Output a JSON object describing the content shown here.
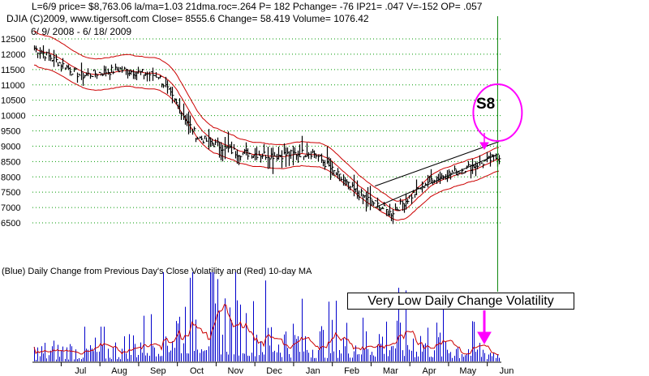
{
  "header": {
    "line1": "L=6/9  price= $8,763.06  la/ma=1.03 21dma.roc=.264 P=  182 Pchange= -76 IP21= .047 V=-152 OP= .057",
    "line2": "DJIA     (C)2009, www.tigersoft.com     Close=  8555.6  Change= 58.419 Volume= 1076.42",
    "line3": "6/ 9/ 2008 - 6/ 18/ 2009"
  },
  "annotations": {
    "signal": "S8",
    "volatility_note": "Very Low Daily Change Volatility"
  },
  "colors": {
    "bars": "#000000",
    "bands": "#cc0000",
    "grid": "#009900",
    "signal_line": "#008000",
    "circle": "#ff00ff",
    "arrow": "#ff00ff",
    "volatility_bars": "#0000cc",
    "volatility_ma": "#cc0000",
    "trendline": "#000000"
  },
  "chart_data": [
    {
      "type": "line",
      "subtype": "daily price bars with moving-average bands",
      "ylim": [
        6500,
        12500
      ],
      "yticks": [
        6500,
        7000,
        7500,
        8000,
        8500,
        9000,
        9500,
        10000,
        10500,
        11000,
        11500,
        12000,
        12500
      ],
      "grid": "horizontal dotted",
      "x_tick_labels": [
        "Jul",
        "Aug",
        "Sep",
        "Oct",
        "Nov",
        "Dec",
        "Jan",
        "Feb",
        "Mar",
        "Apr",
        "May",
        "Jun"
      ],
      "months": [
        "2008-06",
        "2008-07",
        "2008-08",
        "2008-09",
        "2008-10",
        "2008-11",
        "2008-12",
        "2009-01",
        "2009-02",
        "2009-03",
        "2009-04",
        "2009-05",
        "2009-06"
      ],
      "close_by_month": [
        12200,
        11300,
        11500,
        11300,
        9300,
        8800,
        8700,
        8800,
        7600,
        6800,
        7900,
        8300,
        8760
      ],
      "signal": {
        "label": "S8",
        "date": "2009-06-09"
      }
    },
    {
      "type": "bar",
      "title": "(Blue) Daily Change from Previous Day's Close Volatility and (Red) 10-day MA",
      "series": [
        {
          "name": "Daily Change from Previous Day's Close Volatility",
          "role": "bars"
        },
        {
          "name": "10-day MA",
          "role": "line"
        }
      ],
      "relative_level_by_month": [
        0.12,
        0.15,
        0.15,
        0.38,
        0.62,
        0.45,
        0.32,
        0.25,
        0.27,
        0.33,
        0.27,
        0.18,
        0.12
      ],
      "annotation": "Very Low Daily Change Volatility"
    }
  ]
}
